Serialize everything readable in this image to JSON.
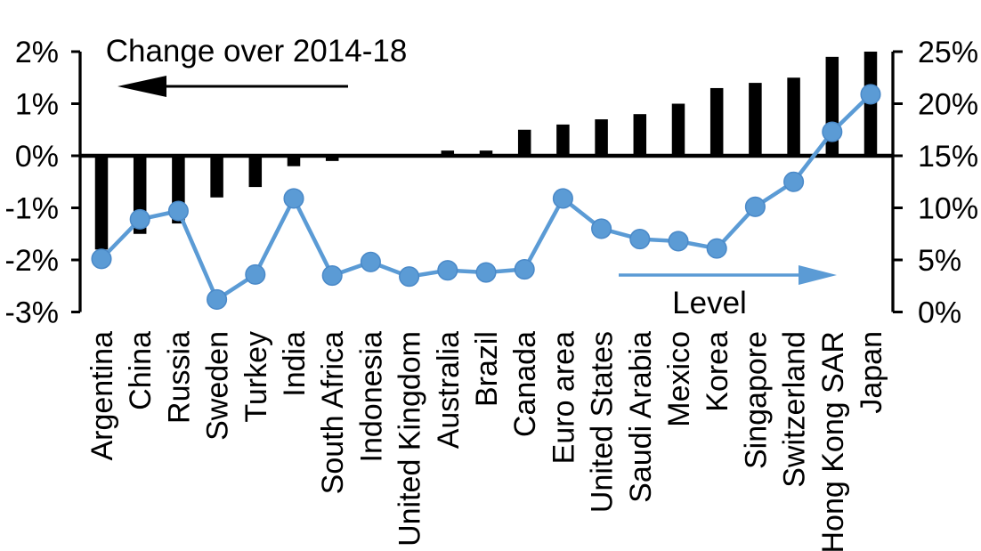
{
  "chart_data": {
    "type": "bar",
    "combo": "bar+line",
    "categories": [
      "Argentina",
      "China",
      "Russia",
      "Sweden",
      "Turkey",
      "India",
      "South Africa",
      "Indonesia",
      "United Kingdom",
      "Australia",
      "Brazil",
      "Canada",
      "Euro area",
      "United States",
      "Saudi Arabia",
      "Mexico",
      "Korea",
      "Singapore",
      "Switzerland",
      "Hong Kong SAR",
      "Japan"
    ],
    "series": [
      {
        "name": "Change over 2014-18",
        "type": "bar",
        "axis": "left",
        "color": "#000000",
        "values": [
          -1.8,
          -1.5,
          -1.3,
          -0.8,
          -0.6,
          -0.2,
          -0.1,
          0.0,
          0.0,
          0.1,
          0.1,
          0.5,
          0.6,
          0.7,
          0.8,
          1.0,
          1.3,
          1.4,
          1.5,
          1.9,
          2.0
        ]
      },
      {
        "name": "Level",
        "type": "line",
        "axis": "right",
        "color": "#5B9BD5",
        "marker_stroke": "#4A89C8",
        "values": [
          5.1,
          8.9,
          9.7,
          1.2,
          3.6,
          10.9,
          3.5,
          4.8,
          3.4,
          4.0,
          3.8,
          4.1,
          10.9,
          8.0,
          7.0,
          6.8,
          6.1,
          10.1,
          12.5,
          17.3,
          20.9
        ]
      }
    ],
    "left_axis": {
      "min": -3,
      "max": 2,
      "tick_labels": [
        "2%",
        "1%",
        "0%",
        "-1%",
        "-2%",
        "-3%"
      ]
    },
    "right_axis": {
      "min": 0,
      "max": 25,
      "tick_labels": [
        "25%",
        "20%",
        "15%",
        "10%",
        "5%",
        "0%"
      ]
    },
    "annotations": [
      {
        "text": "Change over 2014-18",
        "arrow_direction": "left",
        "arrow_color": "#000000"
      },
      {
        "text": "Level",
        "arrow_direction": "right",
        "arrow_color": "#5B9BD5"
      }
    ],
    "grid": false,
    "legend_position": "none",
    "background": "#FFFFFF"
  }
}
